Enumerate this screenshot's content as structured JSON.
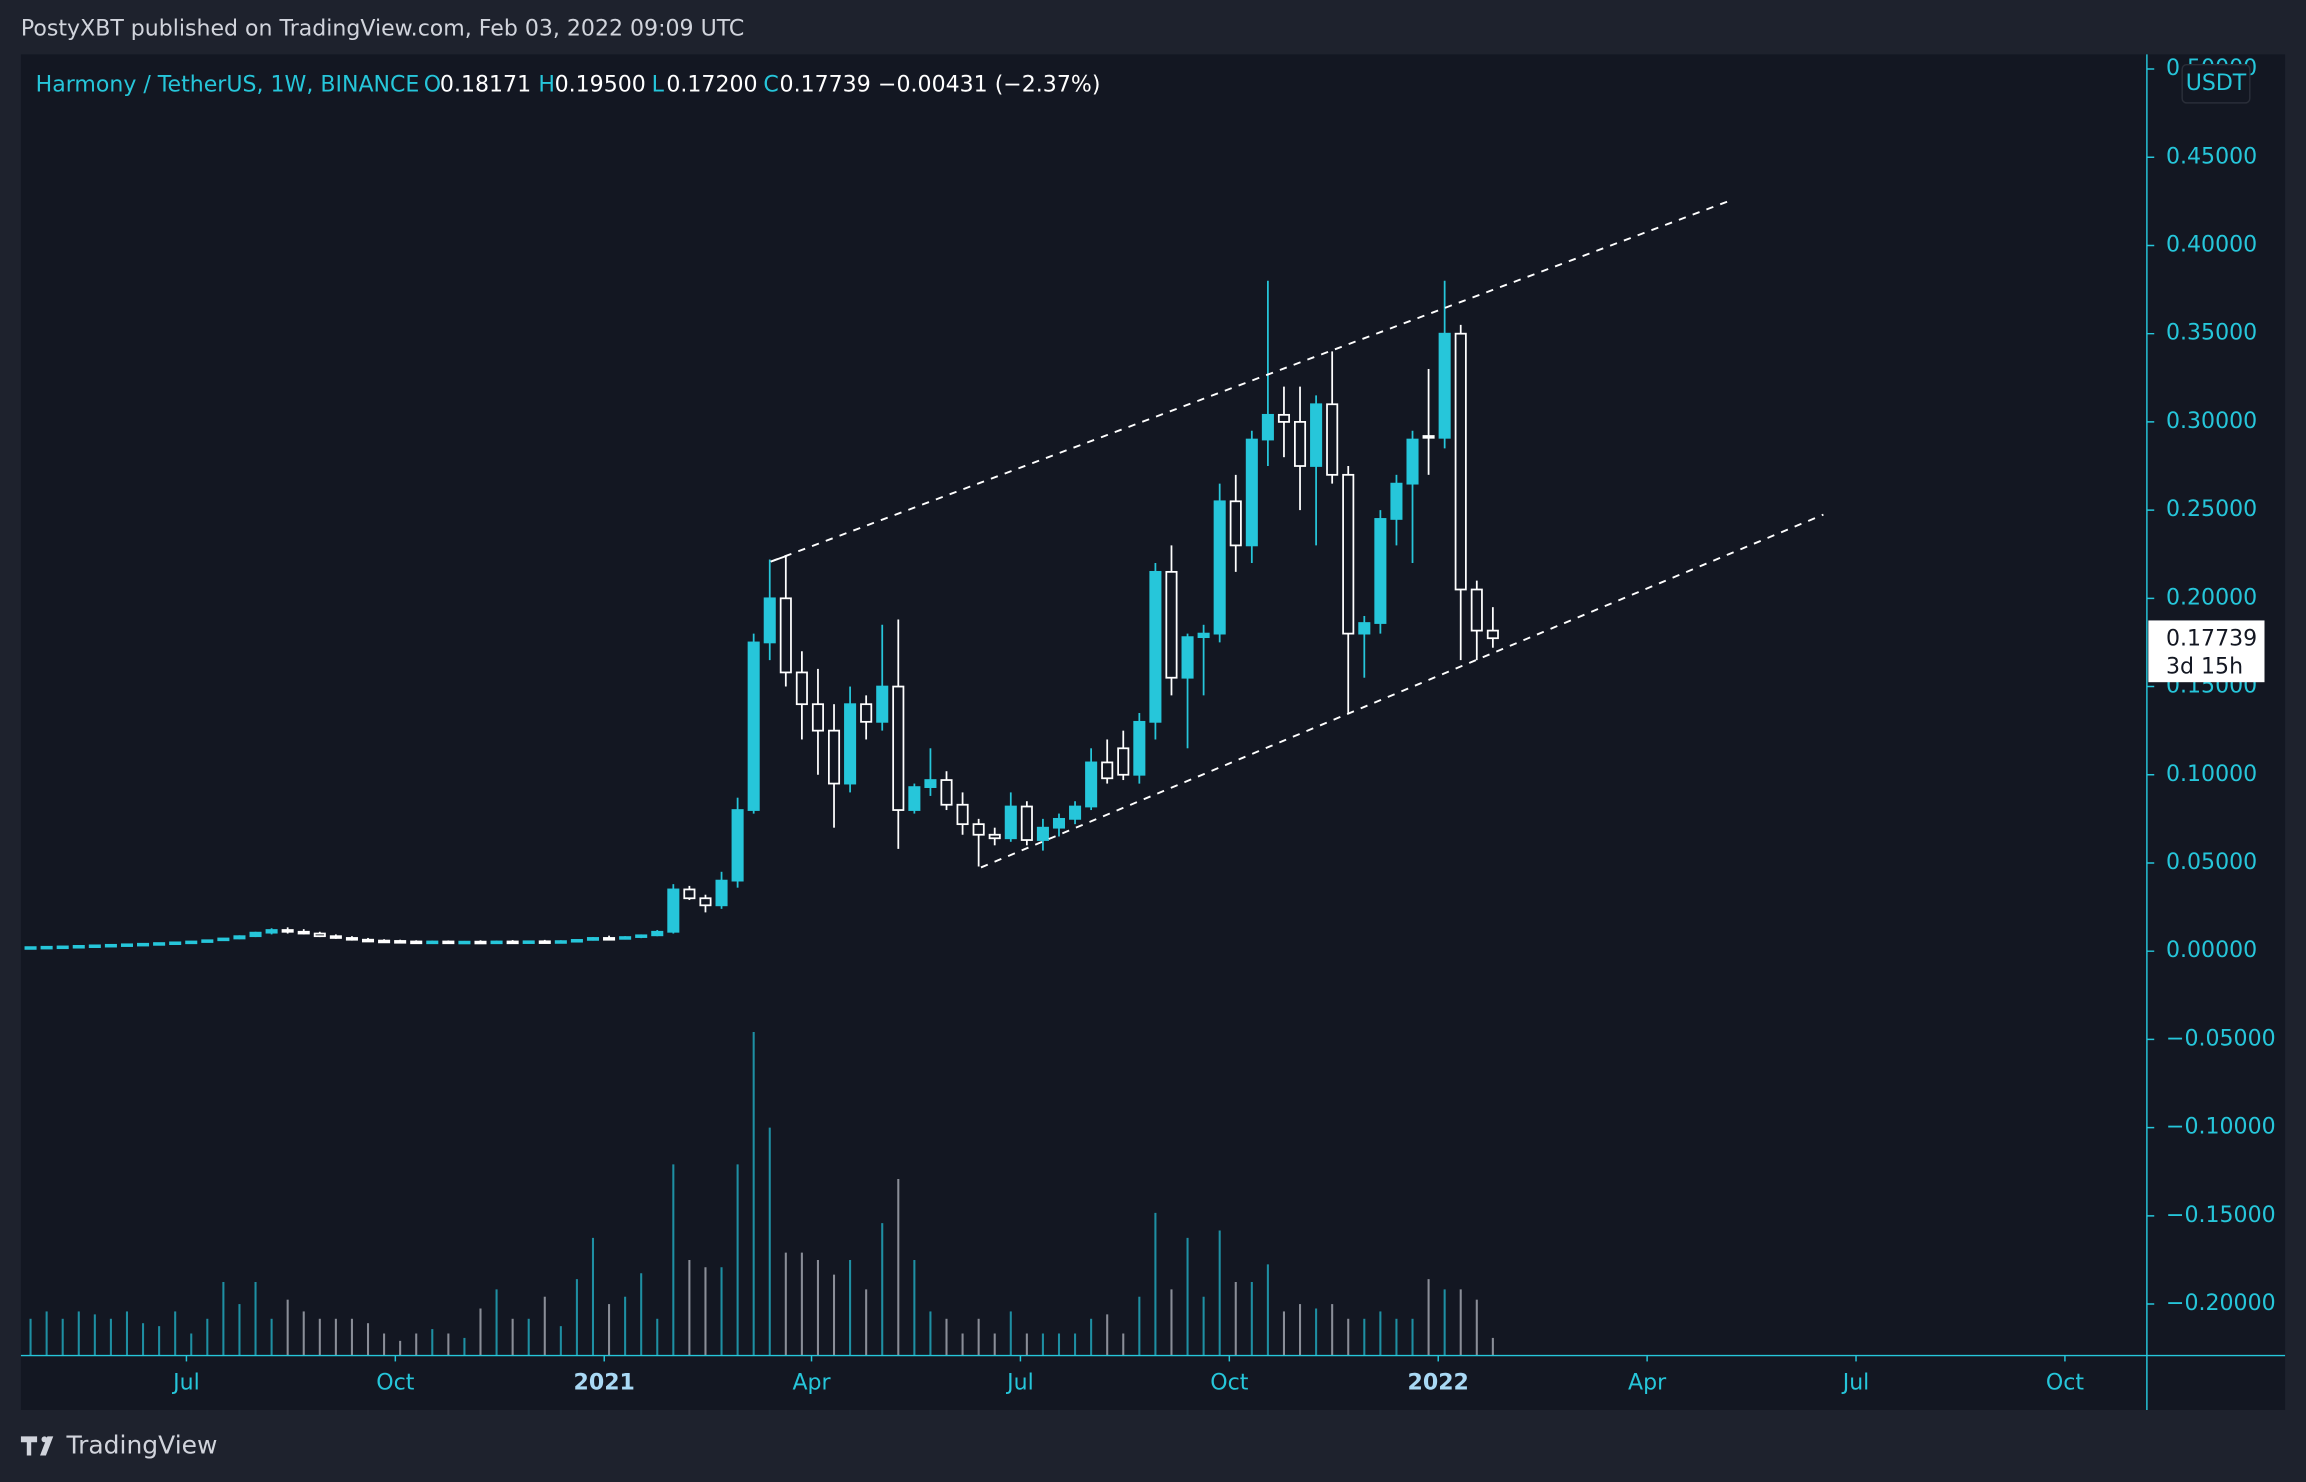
{
  "header": {
    "published": "PostyXBT published on TradingView.com, Feb 03, 2022 09:09 UTC",
    "symbol": "Harmony / TetherUS, 1W, BINANCE",
    "o_key": "O",
    "o_val": "0.18171",
    "h_key": "H",
    "h_val": "0.19500",
    "l_key": "L",
    "l_val": "0.17200",
    "c_key": "C",
    "c_val": "0.17739",
    "change": "−0.00431 (−2.37%)",
    "currency": "USDT",
    "last_price": "0.17739",
    "countdown": "3d 15h",
    "logo": "TradingView"
  },
  "chart_data": {
    "type": "candlestick",
    "up_color": "#26c6da",
    "down_color": "#ffffff",
    "ohlc": [
      [
        0.002,
        0.0024,
        0.0017,
        0.0023
      ],
      [
        0.0023,
        0.0027,
        0.0021,
        0.0025
      ],
      [
        0.0025,
        0.0029,
        0.0023,
        0.0027
      ],
      [
        0.0027,
        0.0032,
        0.0025,
        0.003
      ],
      [
        0.003,
        0.0035,
        0.0028,
        0.0033
      ],
      [
        0.0033,
        0.0038,
        0.003,
        0.0036
      ],
      [
        0.0036,
        0.0041,
        0.0033,
        0.0039
      ],
      [
        0.0039,
        0.0044,
        0.0036,
        0.0042
      ],
      [
        0.0042,
        0.0048,
        0.0039,
        0.0046
      ],
      [
        0.0046,
        0.0052,
        0.0043,
        0.005
      ],
      [
        0.005,
        0.0058,
        0.0047,
        0.0055
      ],
      [
        0.0055,
        0.0065,
        0.0052,
        0.0062
      ],
      [
        0.0062,
        0.0075,
        0.0058,
        0.0072
      ],
      [
        0.0072,
        0.009,
        0.0068,
        0.0085
      ],
      [
        0.0085,
        0.011,
        0.008,
        0.0105
      ],
      [
        0.0105,
        0.013,
        0.0095,
        0.012
      ],
      [
        0.012,
        0.0135,
        0.01,
        0.011
      ],
      [
        0.011,
        0.0125,
        0.0095,
        0.01
      ],
      [
        0.01,
        0.011,
        0.008,
        0.0085
      ],
      [
        0.0085,
        0.0095,
        0.007,
        0.0075
      ],
      [
        0.0075,
        0.0085,
        0.006,
        0.0065
      ],
      [
        0.0065,
        0.0075,
        0.0055,
        0.006
      ],
      [
        0.006,
        0.0068,
        0.0052,
        0.0058
      ],
      [
        0.0058,
        0.0065,
        0.005,
        0.0055
      ],
      [
        0.0055,
        0.0062,
        0.0048,
        0.0053
      ],
      [
        0.0053,
        0.006,
        0.0047,
        0.0055
      ],
      [
        0.0055,
        0.0061,
        0.0049,
        0.0052
      ],
      [
        0.0052,
        0.0058,
        0.0046,
        0.0054
      ],
      [
        0.0054,
        0.0062,
        0.0048,
        0.0051
      ],
      [
        0.0051,
        0.006,
        0.0046,
        0.0055
      ],
      [
        0.0055,
        0.0063,
        0.005,
        0.0053
      ],
      [
        0.0053,
        0.006,
        0.0048,
        0.0056
      ],
      [
        0.0056,
        0.0064,
        0.005,
        0.0054
      ],
      [
        0.0054,
        0.0062,
        0.0049,
        0.0057
      ],
      [
        0.0057,
        0.0068,
        0.0052,
        0.0064
      ],
      [
        0.0064,
        0.008,
        0.006,
        0.0075
      ],
      [
        0.0075,
        0.0088,
        0.0068,
        0.0072
      ],
      [
        0.0072,
        0.0085,
        0.0066,
        0.008
      ],
      [
        0.008,
        0.0095,
        0.0074,
        0.009
      ],
      [
        0.009,
        0.012,
        0.0085,
        0.011
      ],
      [
        0.011,
        0.038,
        0.01,
        0.035
      ],
      [
        0.035,
        0.037,
        0.029,
        0.03
      ],
      [
        0.03,
        0.032,
        0.022,
        0.026
      ],
      [
        0.026,
        0.045,
        0.024,
        0.04
      ],
      [
        0.04,
        0.087,
        0.036,
        0.08
      ],
      [
        0.08,
        0.18,
        0.078,
        0.175
      ],
      [
        0.175,
        0.222,
        0.165,
        0.2
      ],
      [
        0.2,
        0.224,
        0.15,
        0.158
      ],
      [
        0.158,
        0.17,
        0.12,
        0.14
      ],
      [
        0.14,
        0.16,
        0.1,
        0.125
      ],
      [
        0.125,
        0.14,
        0.07,
        0.095
      ],
      [
        0.095,
        0.15,
        0.09,
        0.14
      ],
      [
        0.14,
        0.145,
        0.12,
        0.13
      ],
      [
        0.13,
        0.185,
        0.125,
        0.15
      ],
      [
        0.15,
        0.188,
        0.058,
        0.08
      ],
      [
        0.08,
        0.095,
        0.078,
        0.093
      ],
      [
        0.093,
        0.115,
        0.088,
        0.097
      ],
      [
        0.097,
        0.102,
        0.08,
        0.083
      ],
      [
        0.083,
        0.09,
        0.066,
        0.072
      ],
      [
        0.072,
        0.075,
        0.048,
        0.066
      ],
      [
        0.066,
        0.07,
        0.06,
        0.064
      ],
      [
        0.064,
        0.09,
        0.062,
        0.082
      ],
      [
        0.082,
        0.085,
        0.06,
        0.063
      ],
      [
        0.063,
        0.075,
        0.057,
        0.07
      ],
      [
        0.07,
        0.078,
        0.065,
        0.075
      ],
      [
        0.075,
        0.085,
        0.072,
        0.082
      ],
      [
        0.082,
        0.115,
        0.08,
        0.107
      ],
      [
        0.107,
        0.12,
        0.095,
        0.098
      ],
      [
        0.115,
        0.125,
        0.097,
        0.1
      ],
      [
        0.1,
        0.135,
        0.095,
        0.13
      ],
      [
        0.13,
        0.22,
        0.12,
        0.215
      ],
      [
        0.215,
        0.23,
        0.145,
        0.155
      ],
      [
        0.155,
        0.18,
        0.115,
        0.178
      ],
      [
        0.178,
        0.185,
        0.145,
        0.18
      ],
      [
        0.18,
        0.265,
        0.175,
        0.255
      ],
      [
        0.255,
        0.27,
        0.215,
        0.23
      ],
      [
        0.23,
        0.295,
        0.22,
        0.29
      ],
      [
        0.29,
        0.38,
        0.275,
        0.304
      ],
      [
        0.304,
        0.32,
        0.28,
        0.3
      ],
      [
        0.3,
        0.32,
        0.25,
        0.275
      ],
      [
        0.275,
        0.315,
        0.23,
        0.31
      ],
      [
        0.31,
        0.34,
        0.265,
        0.27
      ],
      [
        0.27,
        0.275,
        0.135,
        0.18
      ],
      [
        0.18,
        0.19,
        0.155,
        0.186
      ],
      [
        0.186,
        0.25,
        0.18,
        0.245
      ],
      [
        0.245,
        0.27,
        0.23,
        0.265
      ],
      [
        0.265,
        0.295,
        0.22,
        0.29
      ],
      [
        0.292,
        0.33,
        0.27,
        0.291
      ],
      [
        0.291,
        0.38,
        0.285,
        0.35
      ],
      [
        0.35,
        0.355,
        0.165,
        0.205
      ],
      [
        0.205,
        0.21,
        0.165,
        0.1817
      ],
      [
        0.18171,
        0.195,
        0.172,
        0.17739
      ]
    ],
    "volume": [
      25,
      30,
      25,
      30,
      28,
      25,
      30,
      22,
      20,
      30,
      15,
      25,
      50,
      35,
      50,
      25,
      38,
      30,
      25,
      25,
      25,
      22,
      15,
      10,
      15,
      18,
      15,
      12,
      32,
      45,
      25,
      25,
      40,
      20,
      52,
      80,
      35,
      40,
      56,
      25,
      130,
      65,
      60,
      60,
      130,
      220,
      155,
      70,
      70,
      65,
      55,
      65,
      45,
      90,
      120,
      65,
      30,
      25,
      15,
      25,
      15,
      30,
      15,
      15,
      15,
      15,
      25,
      28,
      15,
      40,
      97,
      45,
      80,
      40,
      85,
      50,
      50,
      62,
      30,
      35,
      32,
      35,
      25,
      25,
      30,
      25,
      25,
      52,
      45,
      45,
      38,
      12
    ],
    "volume_lim": [
      0,
      230
    ],
    "xlim": [
      -0.6,
      131.7
    ],
    "xticks": [
      {
        "value": 9.7,
        "label": "Jul"
      },
      {
        "value": 22.7,
        "label": "Oct"
      },
      {
        "value": 35.7,
        "label": "2021"
      },
      {
        "value": 48.6,
        "label": "Apr"
      },
      {
        "value": 61.6,
        "label": "Jul"
      },
      {
        "value": 74.6,
        "label": "Oct"
      },
      {
        "value": 87.6,
        "label": "2022"
      },
      {
        "value": 100.6,
        "label": "Apr"
      },
      {
        "value": 113.6,
        "label": "Jul"
      },
      {
        "value": 126.6,
        "label": "Oct"
      }
    ],
    "ylim": [
      -0.2292,
      0.5083
    ],
    "yticks": [
      {
        "value": -0.2,
        "label": "−0.20000"
      },
      {
        "value": -0.15,
        "label": "−0.15000"
      },
      {
        "value": -0.1,
        "label": "−0.10000"
      },
      {
        "value": -0.05,
        "label": "−0.05000"
      },
      {
        "value": 0,
        "label": "0.00000"
      },
      {
        "value": 0.05,
        "label": "0.05000"
      },
      {
        "value": 0.1,
        "label": "0.10000"
      },
      {
        "value": 0.15,
        "label": "0.15000"
      },
      {
        "value": 0.2,
        "label": "0.20000"
      },
      {
        "value": 0.25,
        "label": "0.25000"
      },
      {
        "value": 0.3,
        "label": "0.30000"
      },
      {
        "value": 0.35,
        "label": "0.35000"
      },
      {
        "value": 0.4,
        "label": "0.40000"
      },
      {
        "value": 0.45,
        "label": "0.45000"
      },
      {
        "value": 0.5,
        "label": "0.50000"
      }
    ]
  }
}
